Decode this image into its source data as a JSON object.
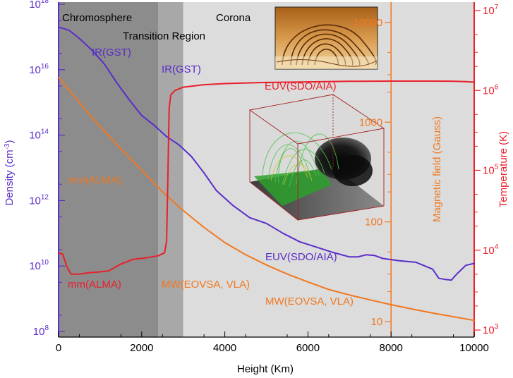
{
  "chart_data": {
    "type": "line",
    "title": "",
    "xlabel": "Height (Km)",
    "xlim": [
      0,
      10000
    ],
    "x_ticks": [
      0,
      2000,
      4000,
      6000,
      8000,
      10000
    ],
    "x_tick_labels": [
      "0",
      "2000",
      "4000",
      "6000",
      "8000",
      "10000"
    ],
    "axes": {
      "density": {
        "label": "Density (cm",
        "label_exp": "-3",
        "label_end": ")",
        "scale": "log",
        "ylim": [
          100000000.0,
          1e+18
        ],
        "tick_labels": [
          {
            "value": 100000000.0,
            "base": "10",
            "exp": "8"
          },
          {
            "value": 10000000000.0,
            "base": "10",
            "exp": "10"
          },
          {
            "value": 1000000000000.0,
            "base": "10",
            "exp": "12"
          },
          {
            "value": 100000000000000.0,
            "base": "10",
            "exp": "14"
          },
          {
            "value": 1e+16,
            "base": "10",
            "exp": "16"
          },
          {
            "value": 1e+18,
            "base": "10",
            "exp": "18"
          }
        ],
        "color": "#5a2dc8"
      },
      "magnetic": {
        "label": "Magnetic field (Gauss)",
        "scale": "log",
        "ylim": [
          7,
          16000
        ],
        "tick_labels": [
          "10",
          "100",
          "1000",
          "10000"
        ],
        "tick_values": [
          10,
          100,
          1000,
          10000
        ],
        "color": "#f07820"
      },
      "temperature": {
        "label": "Temperature (K)",
        "scale": "log",
        "ylim": [
          1000.0,
          10000000.0
        ],
        "tick_labels": [
          {
            "value": 1000.0,
            "base": "10",
            "exp": "3"
          },
          {
            "value": 10000.0,
            "base": "10",
            "exp": "4"
          },
          {
            "value": 100000.0,
            "base": "10",
            "exp": "5"
          },
          {
            "value": 1000000.0,
            "base": "10",
            "exp": "6"
          },
          {
            "value": 10000000.0,
            "base": "10",
            "exp": "7"
          }
        ],
        "color": "#e8202a"
      }
    },
    "regions": [
      {
        "name": "chromosphere",
        "label": "Chromosphere",
        "x_start": 0,
        "x_end": 2400,
        "fill": "#8c8c8c"
      },
      {
        "name": "transition-region",
        "label": "Transition Region",
        "x_start": 2400,
        "x_end": 3000,
        "fill": "#a8a8a8"
      },
      {
        "name": "corona",
        "label": "Corona",
        "x_start": 3000,
        "x_end": 10000,
        "fill": "#dcdcdc"
      }
    ],
    "series": [
      {
        "name": "density",
        "axis": "density",
        "color": "#5a2dc8",
        "x": [
          0,
          250,
          500,
          800,
          1100,
          1400,
          1700,
          2000,
          2300,
          2600,
          2900,
          3200,
          3500,
          3800,
          4200,
          4600,
          5000,
          5400,
          5800,
          6200,
          6600,
          7000,
          7200,
          7400,
          7600,
          7800,
          8200,
          8600,
          9000,
          9150,
          9300,
          9450,
          9600,
          9800,
          10000
        ],
        "y": [
          2e+17,
          1.6e+17,
          9e+16,
          4e+16,
          1.5e+16,
          4000000000000000.0,
          1200000000000000.0,
          400000000000000.0,
          200000000000000.0,
          90000000000000.0,
          50000000000000.0,
          22000000000000.0,
          7000000000000.0,
          2000000000000.0,
          700000000000.0,
          300000000000.0,
          200000000000.0,
          100000000000.0,
          55000000000.0,
          38000000000.0,
          26000000000.0,
          19000000000.0,
          19000000000.0,
          22000000000.0,
          21000000000.0,
          17000000000.0,
          14500000000.0,
          13000000000.0,
          8000000000.0,
          4200000000.0,
          3900000000.0,
          3700000000.0,
          6000000000.0,
          10500000000.0,
          12000000000.0
        ]
      },
      {
        "name": "magnetic-field",
        "axis": "magnetic",
        "color": "#f07820",
        "x": [
          0,
          300,
          600,
          1000,
          1500,
          2000,
          2500,
          3000,
          3500,
          4000,
          4500,
          5000,
          5500,
          6000,
          6500,
          7000,
          7500,
          8000,
          8500,
          9000,
          9500,
          10000
        ],
        "y": [
          2800,
          2000,
          1400,
          900,
          540,
          330,
          200,
          130,
          88,
          62,
          47,
          37,
          30,
          25,
          21,
          18.5,
          16.5,
          14.8,
          13.4,
          12.2,
          11.2,
          10.3
        ]
      },
      {
        "name": "temperature",
        "axis": "temperature",
        "color": "#e8202a",
        "x": [
          0,
          100,
          200,
          300,
          400,
          500,
          700,
          900,
          1200,
          1500,
          1800,
          2100,
          2400,
          2550,
          2600,
          2630,
          2660,
          2700,
          2800,
          3000,
          3500,
          4000,
          5000,
          6000,
          7000,
          8000,
          9000,
          9500,
          9800,
          10000
        ],
        "y": [
          9200,
          8900,
          6200,
          5000,
          5000,
          5000,
          5200,
          5300,
          5500,
          6700,
          7700,
          8000,
          8500,
          9300,
          13000,
          80000,
          600000,
          880000,
          1000000,
          1100000,
          1180000,
          1220000,
          1260000,
          1280000,
          1300000,
          1310000,
          1310000,
          1305000,
          1290000,
          1270000
        ]
      }
    ],
    "annotations": [
      {
        "text": "IR(GST)",
        "color": "#5a2dc8"
      },
      {
        "text": "IR(GST)",
        "color": "#5a2dc8"
      },
      {
        "text": "EUV(SDO/AIA)",
        "color": "#e8202a"
      },
      {
        "text": "mm(ALMA)",
        "color": "#f07820"
      },
      {
        "text": "EUV(SDO/AIA)",
        "color": "#5a2dc8"
      },
      {
        "text": "mm(ALMA)",
        "color": "#e8202a"
      },
      {
        "text": "MW(EOVSA, VLA)",
        "color": "#f07820"
      },
      {
        "text": "MW(EOVSA, VLA)",
        "color": "#f07820"
      }
    ]
  }
}
